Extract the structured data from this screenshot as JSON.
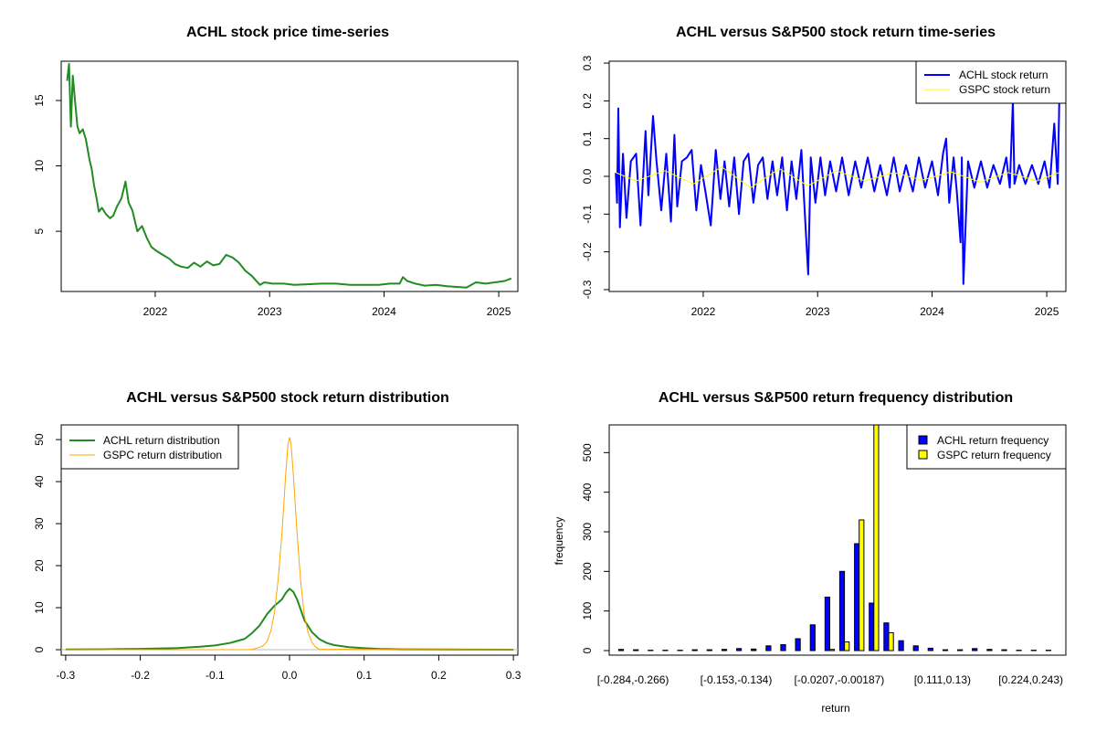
{
  "colors": {
    "achl_price": "#228b22",
    "achl_return": "#0000ff",
    "gspc_return": "#ffff00",
    "achl_density": "#228b22",
    "gspc_density": "#ffa500",
    "bar_achl": "#0000ff",
    "bar_gspc": "#ffff00"
  },
  "chart_data": [
    {
      "type": "line",
      "title": "ACHL stock price time-series",
      "xlabel": "",
      "ylabel": "",
      "x_ticks": [
        "2022",
        "2023",
        "2024",
        "2025"
      ],
      "y_ticks": [
        5,
        10,
        15
      ],
      "xlim": [
        "2021-03-07",
        "2025-03-03"
      ],
      "ylim": [
        0.4,
        18.0
      ],
      "grid": false,
      "series": [
        {
          "color": "#228b22",
          "x": [
            "2021-03-26",
            "2021-04-01",
            "2021-04-07",
            "2021-04-13",
            "2021-04-20",
            "2021-04-28",
            "2021-05-05",
            "2021-05-15",
            "2021-05-25",
            "2021-06-05",
            "2021-06-12",
            "2021-06-20",
            "2021-06-28",
            "2021-07-05",
            "2021-07-15",
            "2021-07-28",
            "2021-08-10",
            "2021-08-20",
            "2021-09-01",
            "2021-09-15",
            "2021-09-28",
            "2021-10-08",
            "2021-10-20",
            "2021-11-05",
            "2021-11-20",
            "2021-12-05",
            "2021-12-20",
            "2022-01-05",
            "2022-01-25",
            "2022-02-15",
            "2022-03-05",
            "2022-03-25",
            "2022-04-15",
            "2022-05-05",
            "2022-05-25",
            "2022-06-15",
            "2022-07-05",
            "2022-07-25",
            "2022-08-15",
            "2022-09-05",
            "2022-09-25",
            "2022-10-15",
            "2022-11-05",
            "2022-12-01",
            "2022-12-15",
            "2023-01-10",
            "2023-02-15",
            "2023-03-20",
            "2023-05-01",
            "2023-06-15",
            "2023-08-01",
            "2023-09-15",
            "2023-11-01",
            "2023-12-15",
            "2024-01-20",
            "2024-02-20",
            "2024-03-01",
            "2024-03-15",
            "2024-04-10",
            "2024-05-10",
            "2024-06-15",
            "2024-07-20",
            "2024-08-20",
            "2024-09-20",
            "2024-10-20",
            "2024-11-20",
            "2024-12-20",
            "2025-01-20",
            "2025-02-10"
          ],
          "values": [
            16.5,
            17.8,
            13.0,
            16.9,
            15.0,
            13.0,
            12.5,
            12.8,
            12.0,
            10.5,
            9.8,
            8.5,
            7.5,
            6.5,
            6.8,
            6.3,
            6.0,
            6.2,
            6.9,
            7.5,
            8.8,
            7.2,
            6.6,
            5.0,
            5.4,
            4.5,
            3.8,
            3.5,
            3.2,
            2.9,
            2.5,
            2.3,
            2.2,
            2.6,
            2.3,
            2.7,
            2.4,
            2.5,
            3.2,
            3.0,
            2.6,
            2.0,
            1.6,
            0.9,
            1.1,
            1.0,
            1.0,
            0.9,
            0.95,
            1.0,
            1.0,
            0.9,
            0.9,
            0.9,
            1.0,
            1.0,
            1.5,
            1.2,
            1.0,
            0.85,
            0.9,
            0.8,
            0.75,
            0.7,
            1.1,
            1.0,
            1.1,
            1.2,
            1.4
          ]
        }
      ]
    },
    {
      "type": "line",
      "title": "ACHL versus S&P500 stock return time-series",
      "xlabel": "",
      "ylabel": "",
      "x_ticks": [
        "2022",
        "2023",
        "2024",
        "2025"
      ],
      "y_ticks": [
        -0.3,
        -0.2,
        -0.1,
        0.0,
        0.1,
        0.2,
        0.3
      ],
      "y_tick_labels": [
        "-0.3",
        "-0.2",
        "-0.1",
        "0.0",
        "0.1",
        "0.2",
        "0.3"
      ],
      "xlim": [
        "2021-03-07",
        "2025-03-03"
      ],
      "ylim": [
        -0.305,
        0.305
      ],
      "legend_position": "top-right",
      "series": [
        {
          "name": "ACHL stock return",
          "color": "#0000ff",
          "x": [
            "2021-03-28",
            "2021-04-01",
            "2021-04-05",
            "2021-04-10",
            "2021-04-20",
            "2021-05-01",
            "2021-05-15",
            "2021-06-01",
            "2021-06-15",
            "2021-07-01",
            "2021-07-10",
            "2021-07-25",
            "2021-08-05",
            "2021-08-20",
            "2021-09-05",
            "2021-09-20",
            "2021-10-01",
            "2021-10-10",
            "2021-10-25",
            "2021-11-10",
            "2021-11-25",
            "2021-12-10",
            "2021-12-25",
            "2022-01-10",
            "2022-01-25",
            "2022-02-10",
            "2022-02-25",
            "2022-03-10",
            "2022-03-25",
            "2022-04-10",
            "2022-04-25",
            "2022-05-10",
            "2022-05-25",
            "2022-06-10",
            "2022-06-25",
            "2022-07-10",
            "2022-07-25",
            "2022-08-10",
            "2022-08-25",
            "2022-09-10",
            "2022-09-25",
            "2022-10-10",
            "2022-10-25",
            "2022-11-10",
            "2022-11-20",
            "2022-11-28",
            "2022-12-02",
            "2022-12-10",
            "2022-12-25",
            "2023-01-10",
            "2023-01-25",
            "2023-02-10",
            "2023-03-01",
            "2023-03-20",
            "2023-04-10",
            "2023-05-01",
            "2023-05-20",
            "2023-06-10",
            "2023-07-01",
            "2023-07-20",
            "2023-08-10",
            "2023-09-01",
            "2023-09-20",
            "2023-10-10",
            "2023-11-01",
            "2023-11-20",
            "2023-12-10",
            "2024-01-01",
            "2024-01-20",
            "2024-02-05",
            "2024-02-15",
            "2024-02-25",
            "2024-03-10",
            "2024-03-20",
            "2024-04-01",
            "2024-04-05",
            "2024-04-10",
            "2024-04-25",
            "2024-05-15",
            "2024-06-05",
            "2024-06-25",
            "2024-07-15",
            "2024-08-05",
            "2024-08-25",
            "2024-09-05",
            "2024-09-15",
            "2024-09-20",
            "2024-10-05",
            "2024-10-25",
            "2024-11-15",
            "2024-12-05",
            "2024-12-25",
            "2025-01-10",
            "2025-01-25",
            "2025-02-05",
            "2025-02-10"
          ],
          "values": [
            0.01,
            -0.07,
            0.18,
            -0.135,
            0.06,
            -0.11,
            0.04,
            0.06,
            -0.13,
            0.12,
            -0.05,
            0.16,
            0.04,
            -0.09,
            0.06,
            -0.12,
            0.11,
            -0.08,
            0.04,
            0.05,
            0.07,
            -0.09,
            0.03,
            -0.05,
            -0.13,
            0.07,
            -0.06,
            0.04,
            -0.08,
            0.05,
            -0.1,
            0.04,
            0.06,
            -0.07,
            0.03,
            0.05,
            -0.06,
            0.04,
            -0.05,
            0.05,
            -0.09,
            0.04,
            -0.06,
            0.07,
            -0.08,
            -0.2,
            -0.26,
            0.05,
            -0.07,
            0.05,
            -0.05,
            0.04,
            -0.04,
            0.05,
            -0.05,
            0.04,
            -0.03,
            0.05,
            -0.04,
            0.03,
            -0.05,
            0.05,
            -0.04,
            0.03,
            -0.04,
            0.05,
            -0.03,
            0.04,
            -0.05,
            0.06,
            0.1,
            -0.07,
            0.05,
            -0.04,
            -0.175,
            0.05,
            -0.285,
            0.04,
            -0.03,
            0.04,
            -0.03,
            0.03,
            -0.02,
            0.05,
            -0.03,
            0.2,
            -0.02,
            0.03,
            -0.02,
            0.03,
            -0.02,
            0.04,
            -0.03,
            0.14,
            -0.02,
            0.2
          ]
        },
        {
          "name": "GSPC stock return",
          "color": "#ffff00",
          "x": [
            "2021-03-28",
            "2021-06-01",
            "2021-09-01",
            "2021-12-01",
            "2022-03-01",
            "2022-06-01",
            "2022-09-01",
            "2022-12-01",
            "2023-03-01",
            "2023-06-01",
            "2023-09-01",
            "2023-12-01",
            "2024-03-01",
            "2024-06-01",
            "2024-09-01",
            "2024-12-01",
            "2025-02-10"
          ],
          "values": [
            0.01,
            -0.012,
            0.015,
            -0.02,
            0.025,
            -0.03,
            0.02,
            -0.025,
            0.015,
            -0.012,
            0.01,
            -0.01,
            0.012,
            -0.015,
            0.01,
            -0.012,
            0.01
          ]
        }
      ]
    },
    {
      "type": "line",
      "title": "ACHL versus S&P500 stock return distribution",
      "xlabel": "",
      "ylabel": "",
      "x_ticks": [
        -0.3,
        -0.2,
        -0.1,
        0.0,
        0.1,
        0.2,
        0.3
      ],
      "x_tick_labels": [
        "-0.3",
        "-0.2",
        "-0.1",
        "0.0",
        "0.1",
        "0.2",
        "0.3"
      ],
      "y_ticks": [
        0,
        10,
        20,
        30,
        40,
        50
      ],
      "xlim": [
        -0.306,
        0.306
      ],
      "ylim": [
        -1.3,
        53.5
      ],
      "legend_position": "top-left",
      "series": [
        {
          "name": "ACHL return distribution",
          "color": "#228b22",
          "x": [
            -0.3,
            -0.25,
            -0.2,
            -0.15,
            -0.12,
            -0.1,
            -0.08,
            -0.06,
            -0.05,
            -0.04,
            -0.03,
            -0.02,
            -0.015,
            -0.01,
            -0.005,
            0.0,
            0.005,
            0.01,
            0.015,
            0.02,
            0.03,
            0.04,
            0.05,
            0.06,
            0.08,
            0.1,
            0.12,
            0.15,
            0.2,
            0.25,
            0.3
          ],
          "values": [
            0.05,
            0.1,
            0.2,
            0.4,
            0.7,
            1.0,
            1.6,
            2.6,
            4.0,
            5.8,
            8.5,
            10.5,
            11.2,
            12.0,
            13.5,
            14.5,
            13.8,
            12.0,
            9.5,
            7.0,
            4.2,
            2.5,
            1.6,
            1.1,
            0.6,
            0.35,
            0.2,
            0.1,
            0.05,
            0.02,
            0.01
          ]
        },
        {
          "name": "GSPC return distribution",
          "color": "#ffa500",
          "x": [
            -0.3,
            -0.06,
            -0.05,
            -0.045,
            -0.04,
            -0.035,
            -0.03,
            -0.025,
            -0.02,
            -0.015,
            -0.01,
            -0.005,
            -0.002,
            0.0,
            0.002,
            0.005,
            0.01,
            0.015,
            0.02,
            0.025,
            0.03,
            0.035,
            0.04,
            0.3
          ],
          "values": [
            0,
            0,
            0.1,
            0.3,
            0.6,
            1.0,
            2.0,
            4.5,
            9.0,
            17.0,
            28.0,
            42.0,
            49.0,
            50.5,
            49.0,
            42.0,
            28.0,
            16.0,
            8.0,
            4.0,
            1.8,
            0.6,
            0.1,
            0
          ]
        }
      ]
    },
    {
      "type": "bar",
      "title": "ACHL versus S&P500 return frequency distribution",
      "xlabel": "return",
      "ylabel": "frequency",
      "category_labels_shown": [
        "[-0.284,-0.266)",
        "[-0.153,-0.134)",
        "[-0.0207,-0.00187)",
        "[0.111,0.13)",
        "[0.224,0.243)"
      ],
      "y_ticks": [
        0,
        100,
        200,
        300,
        400,
        500
      ],
      "ylim": [
        0,
        570
      ],
      "legend_position": "top-right",
      "series": [
        {
          "name": "ACHL return frequency",
          "color": "#0000ff",
          "values": [
            3,
            2,
            1,
            1,
            1,
            2,
            2,
            3,
            5,
            4,
            12,
            15,
            30,
            65,
            135,
            200,
            270,
            120,
            70,
            25,
            12,
            6,
            2,
            2,
            5,
            3,
            2,
            1,
            1,
            1
          ]
        },
        {
          "name": "GSPC return frequency",
          "color": "#ffff00",
          "values": [
            0,
            0,
            0,
            0,
            0,
            0,
            0,
            0,
            0,
            0,
            0,
            0,
            0,
            0,
            3,
            22,
            330,
            570,
            45,
            0,
            0,
            0,
            0,
            0,
            0,
            0,
            0,
            0,
            0,
            0
          ]
        }
      ]
    }
  ]
}
